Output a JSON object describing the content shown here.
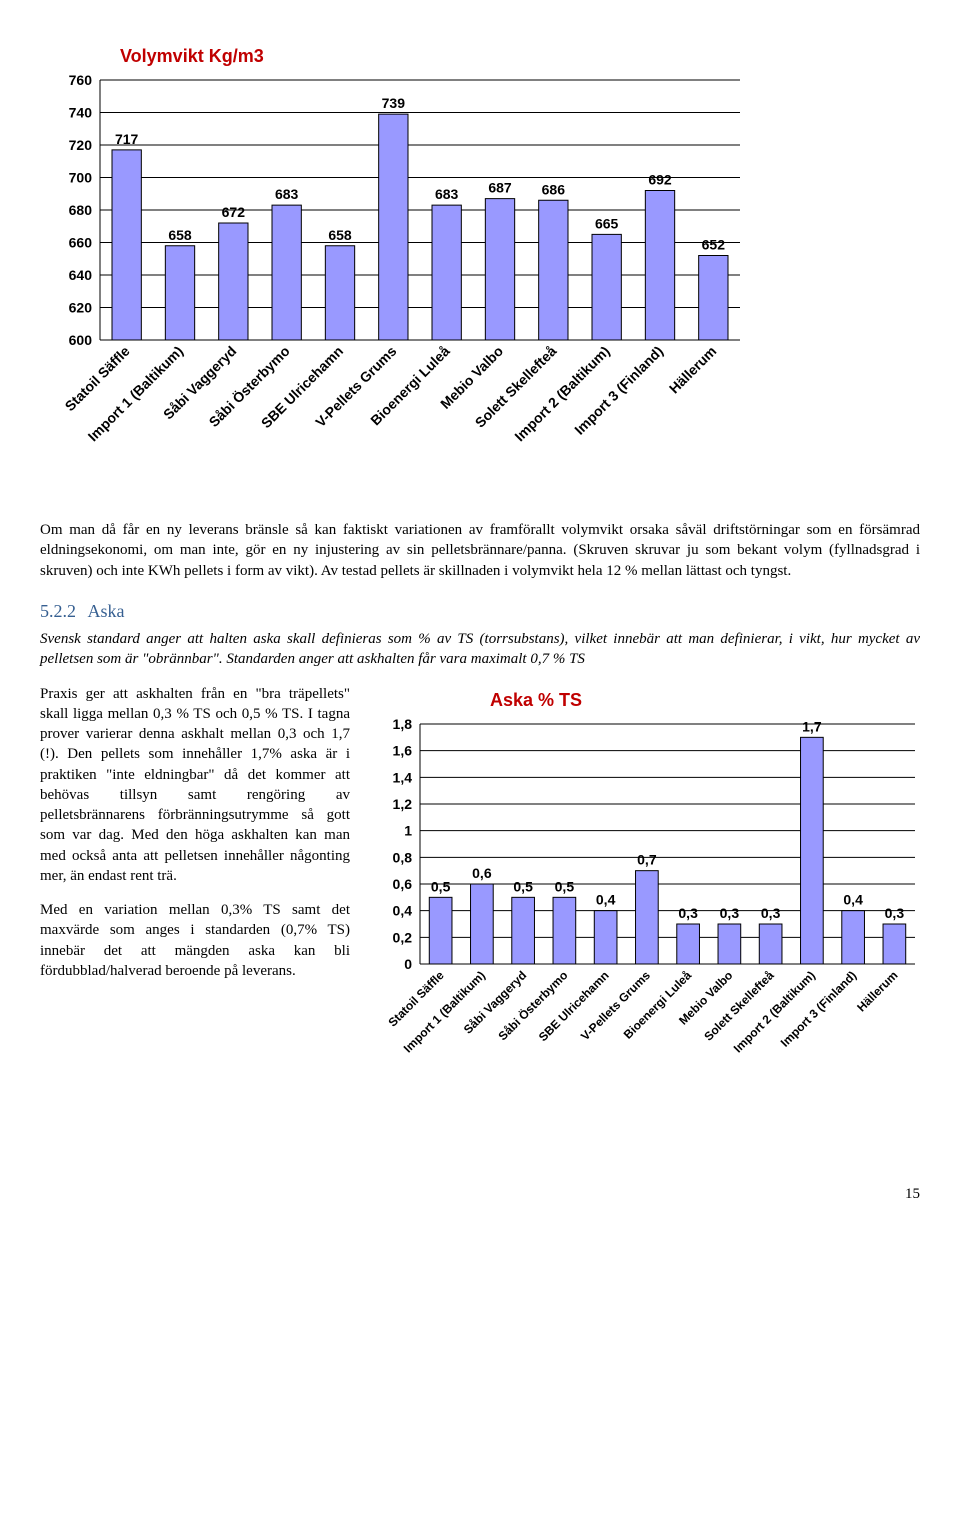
{
  "chart1": {
    "type": "bar",
    "title": "Volymvikt Kg/m3",
    "categories": [
      "Statoil Säffle",
      "Import 1 (Baltikum)",
      "Såbi Vaggeryd",
      "Såbi Österbymo",
      "SBE Ulricehamn",
      "V-Pellets Grums",
      "Bioenergi Luleå",
      "Mebio Valbo",
      "Solett Skellefteå",
      "Import 2 (Baltikum)",
      "Import 3 (Finland)",
      "Hällerum"
    ],
    "values": [
      717,
      658,
      672,
      683,
      658,
      739,
      683,
      687,
      686,
      665,
      692,
      652
    ],
    "ylim": [
      600,
      760
    ],
    "yticks": [
      600,
      620,
      640,
      660,
      680,
      700,
      720,
      740,
      760
    ],
    "bar_color": "#9999ff",
    "bar_stroke": "#000000",
    "grid_color": "#000000",
    "background": "#ffffff",
    "title_color": "#c00000",
    "title_fontsize": 18,
    "tick_fontsize": 14,
    "value_fontsize": 14,
    "font_family": "Arial"
  },
  "para1": "Om man då får en ny leverans bränsle så kan faktiskt variationen av framförallt volymvikt orsaka såväl driftstörningar som en försämrad eldningsekonomi, om man inte, gör en ny injustering av sin pelletsbrännare/panna. (Skruven skruvar ju som bekant volym (fyllnadsgrad i skruven) och inte KWh pellets i form av vikt). Av testad pellets är skillnaden i volymvikt hela 12 % mellan lättast och tyngst.",
  "section": {
    "num": "5.2.2",
    "title": "Aska"
  },
  "para2": "Svensk standard anger att halten aska skall definieras som % av TS (torrsubstans), vilket innebär att man definierar, i vikt, hur mycket av pelletsen som är \"obrännbar\". Standarden anger att askhalten får vara maximalt 0,7 % TS",
  "para3": "Praxis ger att askhalten från en \"bra träpellets\" skall ligga mellan 0,3 % TS och 0,5 % TS. I tagna prover varierar denna askhalt mellan 0,3 och 1,7 (!). Den pellets som innehåller 1,7% aska är i praktiken \"inte eldningbar\" då det kommer att behövas tillsyn samt rengöring av pelletsbrännarens förbränningsutrymme så gott som var dag. Med den höga askhalten kan man med också anta att pelletsen innehåller någonting mer, än endast rent trä.",
  "para4": "Med en variation mellan 0,3% TS samt det maxvärde som anges i standarden (0,7% TS) innebär det att mängden aska kan bli fördubblad/halverad beroende på leverans.",
  "chart2": {
    "type": "bar",
    "title": "Aska % TS",
    "categories": [
      "Statoil Säffle",
      "Import 1 (Baltikum)",
      "Såbi Vaggeryd",
      "Såbi Österbymo",
      "SBE Ulricehamn",
      "V-Pellets Grums",
      "Bioenergi Luleå",
      "Mebio Valbo",
      "Solett Skellefteå",
      "Import 2 (Baltikum)",
      "Import 3 (Finland)",
      "Hällerum"
    ],
    "values": [
      0.5,
      0.6,
      0.5,
      0.5,
      0.4,
      0.7,
      0.3,
      0.3,
      0.3,
      1.7,
      0.4,
      0.3
    ],
    "value_labels": [
      "0,5",
      "0,6",
      "0,5",
      "0,5",
      "0,4",
      "0,7",
      "0,3",
      "0,3",
      "0,3",
      "1,7",
      "0,4",
      "0,3"
    ],
    "ylim": [
      0,
      1.8
    ],
    "yticks": [
      0,
      0.2,
      0.4,
      0.6,
      0.8,
      1.0,
      1.2,
      1.4,
      1.6,
      1.8
    ],
    "ytick_labels": [
      "0",
      "0,2",
      "0,4",
      "0,6",
      "0,8",
      "1",
      "1,2",
      "1,4",
      "1,6",
      "1,8"
    ],
    "bar_color": "#9999ff",
    "bar_stroke": "#000000",
    "grid_color": "#000000",
    "background": "#ffffff",
    "title_color": "#c00000",
    "title_fontsize": 18,
    "tick_fontsize": 14,
    "value_fontsize": 14,
    "font_family": "Arial"
  },
  "page_number": "15"
}
